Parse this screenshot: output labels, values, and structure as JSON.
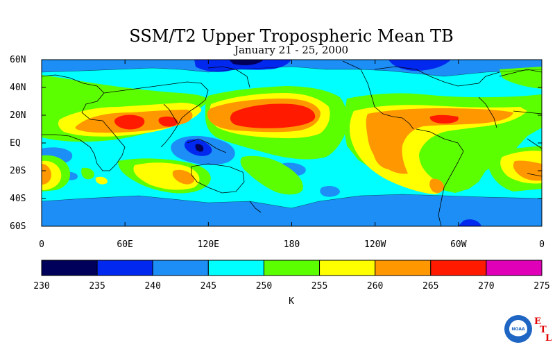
{
  "title": "SSM/T2 Upper Tropospheric Mean TB",
  "subtitle": "January 21 - 25, 2000",
  "lat_labels": [
    "60N",
    "40N",
    "20N",
    "EQ",
    "20S",
    "40S",
    "60S"
  ],
  "lon_labels": [
    "0",
    "60E",
    "120E",
    "180",
    "120W",
    "60W",
    "0"
  ],
  "colorbar": {
    "unit": "K",
    "ticks": [
      "230",
      "235",
      "240",
      "245",
      "250",
      "255",
      "260",
      "265",
      "270",
      "275"
    ],
    "colors": [
      "#00005a",
      "#0028ef",
      "#1c8ef5",
      "#00ffff",
      "#5cff00",
      "#ffff00",
      "#ff9800",
      "#ff1a00",
      "#e000b8"
    ]
  },
  "logo": {
    "center_text": "NOAA",
    "letters": [
      "E",
      "T",
      "L"
    ],
    "letter_color": "#e00000"
  }
}
